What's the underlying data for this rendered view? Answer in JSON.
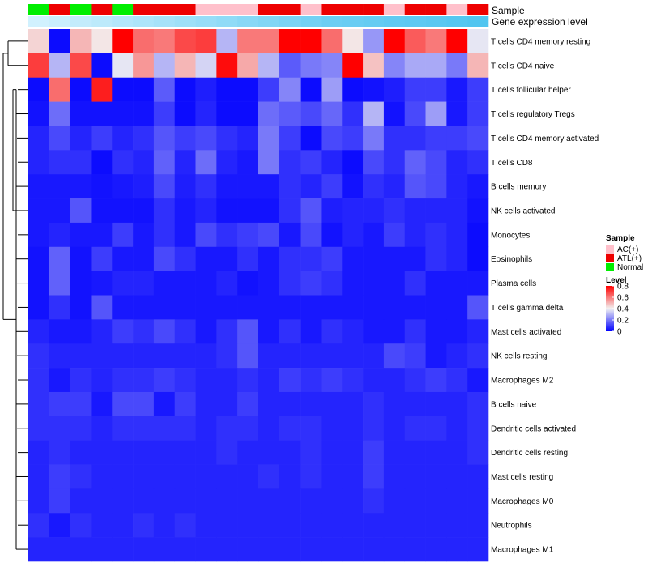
{
  "chart_data": {
    "type": "heatmap",
    "title": "",
    "annotation_tracks": [
      "Sample",
      "Gene expression level"
    ],
    "sample_types": [
      "Normal",
      "ATL(+)",
      "Normal",
      "ATL(+)",
      "Normal",
      "ATL(+)",
      "ATL(+)",
      "ATL(+)",
      "AC(+)",
      "AC(+)",
      "AC(+)",
      "ATL(+)",
      "ATL(+)",
      "AC(+)",
      "ATL(+)",
      "ATL(+)",
      "ATL(+)",
      "AC(+)",
      "ATL(+)",
      "ATL(+)",
      "AC(+)",
      "ATL(+)"
    ],
    "expression_track": [
      0.1,
      0.15,
      0.2,
      0.25,
      0.3,
      0.35,
      0.4,
      0.45,
      0.5,
      0.55,
      0.6,
      0.65,
      0.7,
      0.75,
      0.8,
      0.82,
      0.85,
      0.88,
      0.9,
      0.92,
      0.95,
      0.98
    ],
    "rows": [
      "T cells CD4 memory resting",
      "T cells CD4 naive",
      "T cells follicular helper",
      "T cells regulatory  Tregs",
      "T cells CD4 memory activated",
      "T cells CD8",
      "B cells memory",
      "NK cells activated",
      "Monocytes",
      "Eosinophils",
      "Plasma cells",
      "T cells gamma delta",
      "Mast cells activated",
      "NK cells resting",
      "Macrophages M2",
      "B cells naive",
      "Dendritic cells activated",
      "Dendritic cells resting",
      "Mast cells resting",
      "Macrophages M0",
      "Neutrophils",
      "Macrophages M1"
    ],
    "values": [
      [
        0.45,
        0.02,
        0.5,
        0.42,
        0.8,
        0.62,
        0.6,
        0.68,
        0.7,
        0.3,
        0.6,
        0.6,
        0.8,
        0.8,
        0.62,
        0.42,
        0.25,
        0.8,
        0.65,
        0.6,
        0.8,
        0.38
      ],
      [
        0.7,
        0.3,
        0.68,
        0.02,
        0.38,
        0.55,
        0.3,
        0.5,
        0.35,
        0.78,
        0.52,
        0.3,
        0.15,
        0.2,
        0.22,
        0.8,
        0.48,
        0.22,
        0.28,
        0.28,
        0.2,
        0.5
      ],
      [
        0.02,
        0.62,
        0.02,
        0.75,
        0.02,
        0.02,
        0.15,
        0.02,
        0.05,
        0.02,
        0.02,
        0.1,
        0.22,
        0.02,
        0.26,
        0.02,
        0.03,
        0.05,
        0.1,
        0.1,
        0.04,
        0.1
      ],
      [
        0.03,
        0.18,
        0.03,
        0.03,
        0.03,
        0.03,
        0.1,
        0.02,
        0.06,
        0.02,
        0.02,
        0.18,
        0.15,
        0.12,
        0.17,
        0.08,
        0.3,
        0.03,
        0.12,
        0.26,
        0.04,
        0.1
      ],
      [
        0.06,
        0.12,
        0.06,
        0.1,
        0.06,
        0.08,
        0.14,
        0.1,
        0.12,
        0.08,
        0.06,
        0.2,
        0.1,
        0.02,
        0.12,
        0.1,
        0.2,
        0.08,
        0.08,
        0.1,
        0.1,
        0.12
      ],
      [
        0.06,
        0.08,
        0.08,
        0.02,
        0.08,
        0.06,
        0.16,
        0.06,
        0.18,
        0.06,
        0.04,
        0.2,
        0.08,
        0.1,
        0.06,
        0.02,
        0.12,
        0.08,
        0.16,
        0.12,
        0.06,
        0.08
      ],
      [
        0.04,
        0.04,
        0.04,
        0.03,
        0.04,
        0.05,
        0.12,
        0.05,
        0.08,
        0.04,
        0.04,
        0.04,
        0.08,
        0.06,
        0.1,
        0.03,
        0.08,
        0.06,
        0.14,
        0.12,
        0.06,
        0.04
      ],
      [
        0.04,
        0.04,
        0.14,
        0.03,
        0.03,
        0.03,
        0.08,
        0.04,
        0.06,
        0.03,
        0.03,
        0.03,
        0.08,
        0.14,
        0.05,
        0.06,
        0.06,
        0.08,
        0.06,
        0.06,
        0.06,
        0.03
      ],
      [
        0.04,
        0.06,
        0.04,
        0.04,
        0.1,
        0.04,
        0.08,
        0.04,
        0.12,
        0.08,
        0.1,
        0.12,
        0.04,
        0.12,
        0.03,
        0.06,
        0.04,
        0.1,
        0.06,
        0.08,
        0.06,
        0.02
      ],
      [
        0.03,
        0.16,
        0.03,
        0.1,
        0.04,
        0.04,
        0.12,
        0.08,
        0.04,
        0.04,
        0.08,
        0.04,
        0.08,
        0.08,
        0.1,
        0.04,
        0.04,
        0.04,
        0.04,
        0.08,
        0.06,
        0.02
      ],
      [
        0.03,
        0.16,
        0.03,
        0.04,
        0.06,
        0.06,
        0.04,
        0.04,
        0.04,
        0.06,
        0.03,
        0.04,
        0.08,
        0.1,
        0.08,
        0.04,
        0.04,
        0.04,
        0.08,
        0.04,
        0.04,
        0.04
      ],
      [
        0.03,
        0.08,
        0.03,
        0.14,
        0.04,
        0.04,
        0.04,
        0.04,
        0.04,
        0.04,
        0.04,
        0.04,
        0.04,
        0.04,
        0.04,
        0.04,
        0.04,
        0.04,
        0.04,
        0.04,
        0.04,
        0.14
      ],
      [
        0.06,
        0.04,
        0.04,
        0.06,
        0.1,
        0.08,
        0.12,
        0.08,
        0.04,
        0.08,
        0.14,
        0.04,
        0.08,
        0.04,
        0.08,
        0.06,
        0.04,
        0.04,
        0.08,
        0.04,
        0.04,
        0.06
      ],
      [
        0.08,
        0.06,
        0.06,
        0.06,
        0.06,
        0.06,
        0.06,
        0.06,
        0.06,
        0.08,
        0.14,
        0.06,
        0.06,
        0.06,
        0.06,
        0.06,
        0.06,
        0.12,
        0.1,
        0.04,
        0.06,
        0.08
      ],
      [
        0.08,
        0.04,
        0.08,
        0.06,
        0.08,
        0.08,
        0.1,
        0.08,
        0.06,
        0.06,
        0.08,
        0.06,
        0.1,
        0.08,
        0.1,
        0.08,
        0.06,
        0.06,
        0.08,
        0.1,
        0.08,
        0.04
      ],
      [
        0.08,
        0.1,
        0.1,
        0.04,
        0.12,
        0.12,
        0.04,
        0.1,
        0.06,
        0.06,
        0.1,
        0.06,
        0.06,
        0.06,
        0.06,
        0.06,
        0.08,
        0.06,
        0.06,
        0.06,
        0.06,
        0.08
      ],
      [
        0.08,
        0.08,
        0.08,
        0.06,
        0.08,
        0.08,
        0.08,
        0.08,
        0.06,
        0.08,
        0.08,
        0.06,
        0.08,
        0.08,
        0.06,
        0.06,
        0.08,
        0.06,
        0.08,
        0.08,
        0.06,
        0.08
      ],
      [
        0.06,
        0.08,
        0.06,
        0.06,
        0.06,
        0.06,
        0.06,
        0.06,
        0.06,
        0.08,
        0.06,
        0.06,
        0.06,
        0.08,
        0.06,
        0.06,
        0.1,
        0.06,
        0.06,
        0.06,
        0.06,
        0.08
      ],
      [
        0.06,
        0.1,
        0.08,
        0.06,
        0.06,
        0.06,
        0.06,
        0.06,
        0.06,
        0.06,
        0.06,
        0.08,
        0.06,
        0.08,
        0.06,
        0.06,
        0.1,
        0.06,
        0.06,
        0.06,
        0.06,
        0.06
      ],
      [
        0.06,
        0.1,
        0.06,
        0.06,
        0.06,
        0.06,
        0.06,
        0.06,
        0.06,
        0.06,
        0.06,
        0.06,
        0.06,
        0.06,
        0.06,
        0.06,
        0.08,
        0.06,
        0.06,
        0.06,
        0.06,
        0.06
      ],
      [
        0.08,
        0.04,
        0.08,
        0.06,
        0.06,
        0.08,
        0.06,
        0.08,
        0.06,
        0.06,
        0.06,
        0.06,
        0.06,
        0.06,
        0.06,
        0.06,
        0.06,
        0.06,
        0.06,
        0.06,
        0.06,
        0.06
      ],
      [
        0.06,
        0.06,
        0.06,
        0.06,
        0.06,
        0.06,
        0.06,
        0.06,
        0.06,
        0.06,
        0.06,
        0.06,
        0.06,
        0.06,
        0.06,
        0.06,
        0.06,
        0.06,
        0.06,
        0.06,
        0.06,
        0.06
      ]
    ],
    "color_scale": {
      "stops": [
        0,
        0.4,
        0.8
      ],
      "colors": [
        "#0000ff",
        "#f2f2f2",
        "#ff0000"
      ]
    },
    "legend": {
      "sample_title": "Sample",
      "sample_entries": [
        {
          "label": "AC(+)",
          "color": "#ffc0cb"
        },
        {
          "label": "ATL(+)",
          "color": "#ee0000"
        },
        {
          "label": "Normal",
          "color": "#00ee00"
        }
      ],
      "level_title": "Level",
      "level_ticks": [
        "0.8",
        "0.6",
        "0.4",
        "0.2",
        "0"
      ],
      "level_range": [
        0,
        0.8
      ]
    },
    "expression_colors": [
      "#e0f6ff",
      "#4ec4f0"
    ]
  }
}
